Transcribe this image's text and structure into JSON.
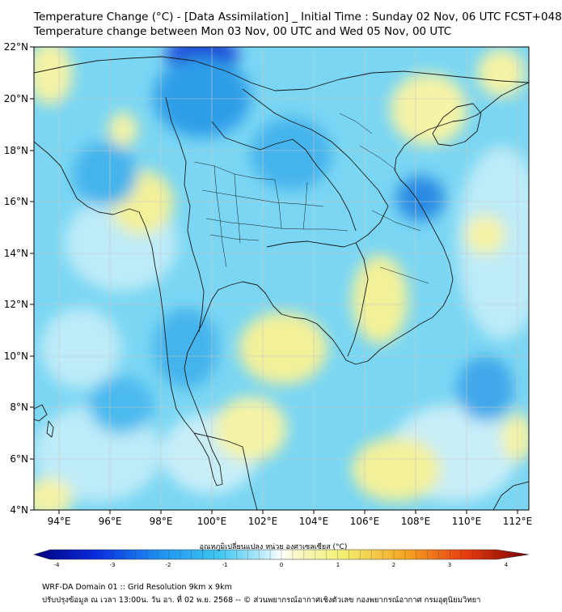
{
  "title": {
    "line1": "Temperature Change (°C) - [Data Assimilation] _ Initial Time : Sunday 02 Nov, 06 UTC FCST+048",
    "line2": "Temperature change between Mon 03 Nov, 00 UTC and Wed 05 Nov, 00 UTC"
  },
  "map": {
    "lat_labels": [
      "22°N",
      "20°N",
      "18°N",
      "16°N",
      "14°N",
      "12°N",
      "10°N",
      "8°N",
      "6°N",
      "4°N"
    ],
    "lon_labels": [
      "94°E",
      "96°E",
      "98°E",
      "100°E",
      "102°E",
      "104°E",
      "106°E",
      "108°E",
      "110°E",
      "112°E"
    ]
  },
  "colorbar": {
    "label": "อุณหภูมิเปลี่ยนแปลง หน่วย องศาเซลเซียส (°C)",
    "ticks": [
      "-4",
      "-3",
      "-2",
      "-1",
      "0",
      "1",
      "2",
      "3",
      "4"
    ],
    "min": -4,
    "max": 4
  },
  "footer": {
    "line1": "WRF-DA Domain 01 :: Grid Resolution 9km x 9km",
    "line2": "ปรับปรุงข้อมูล ณ เวลา 13:00น. วัน อา. ที่ 02 พ.ย. 2568 -- © ส่วนพยากรณ์อากาศเชิงตัวเลข กองพยากรณ์อากาศ กรมอุตุนิยมวิทยา"
  },
  "colors": {
    "cold": "#1a3fd6",
    "cool": "#3fc2ef",
    "light": "#a6e6f7",
    "neutral": "#eaf8fb",
    "warm": "#f6f49a",
    "boundary": "#1a1a1a"
  }
}
